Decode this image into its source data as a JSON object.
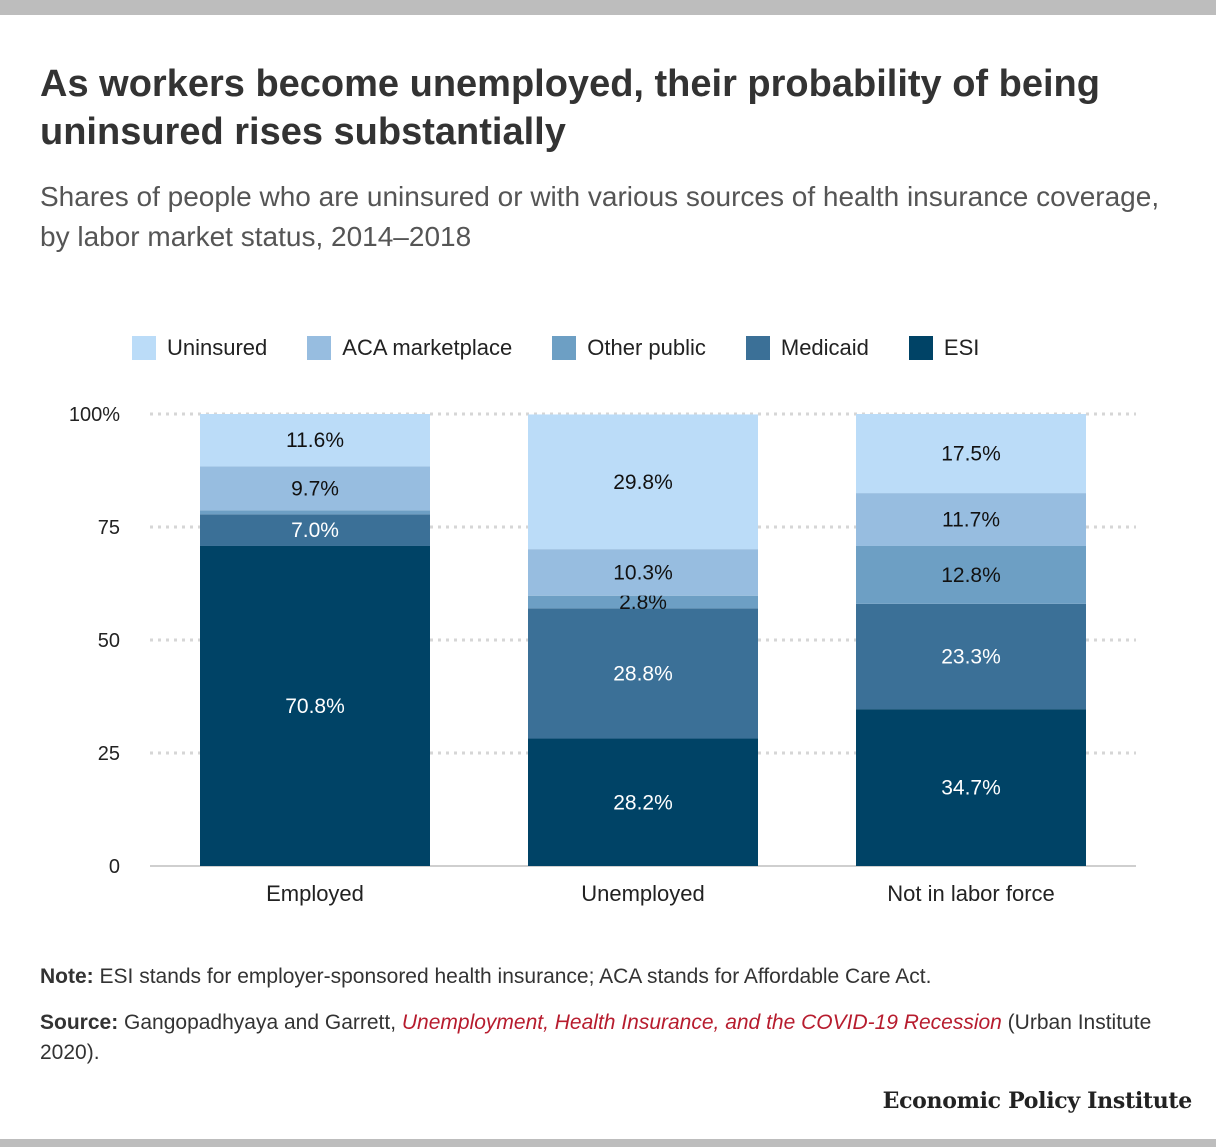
{
  "header": {
    "title": "As workers become unemployed, their probability of being uninsured rises substantially",
    "subtitle": "Shares of people who are uninsured or with various sources of health insurance coverage, by labor market status, 2014–2018"
  },
  "legend": [
    {
      "label": "Uninsured",
      "color": "#bbdcf8"
    },
    {
      "label": "ACA marketplace",
      "color": "#97bde0"
    },
    {
      "label": "Other public",
      "color": "#6d9fc4"
    },
    {
      "label": "Medicaid",
      "color": "#3b7097"
    },
    {
      "label": "ESI",
      "color": "#004366"
    }
  ],
  "chart_data": {
    "type": "bar",
    "stacked": true,
    "categories": [
      "Employed",
      "Unemployed",
      "Not in labor force"
    ],
    "series": [
      {
        "name": "ESI",
        "values": [
          70.8,
          28.2,
          34.7
        ],
        "labels": [
          "70.8%",
          "28.2%",
          "34.7%"
        ],
        "color": "#004366",
        "label_color": "#ffffff"
      },
      {
        "name": "Medicaid",
        "values": [
          7.0,
          28.8,
          23.3
        ],
        "labels": [
          "7.0%",
          "28.8%",
          "23.3%"
        ],
        "color": "#3b7097",
        "label_color": "#ffffff"
      },
      {
        "name": "Other public",
        "values": [
          0.9,
          2.8,
          12.8
        ],
        "labels": [
          "",
          "2.8%",
          "12.8%"
        ],
        "color": "#6d9fc4",
        "label_color": "#111111"
      },
      {
        "name": "ACA marketplace",
        "values": [
          9.7,
          10.3,
          11.7
        ],
        "labels": [
          "9.7%",
          "10.3%",
          "11.7%"
        ],
        "color": "#97bde0",
        "label_color": "#111111"
      },
      {
        "name": "Uninsured",
        "values": [
          11.6,
          29.8,
          17.5
        ],
        "labels": [
          "11.6%",
          "29.8%",
          "17.5%"
        ],
        "color": "#bbdcf8",
        "label_color": "#111111"
      }
    ],
    "ylim": [
      0,
      100
    ],
    "yticks": [
      0,
      25,
      50,
      75,
      100
    ],
    "ytick_labels": [
      "0",
      "25",
      "50",
      "75",
      "100%"
    ],
    "grid": true
  },
  "footer": {
    "note_label": "Note:",
    "note_text": " ESI stands for employer-sponsored health insurance; ACA stands for Affordable Care Act.",
    "source_label": "Source:",
    "source_pre": " Gangopadhyaya and Garrett, ",
    "source_title": "Unemployment, Health Insurance, and the COVID-19 Recession",
    "source_post": " (Urban Institute 2020).",
    "brand": "Economic Policy Institute"
  }
}
